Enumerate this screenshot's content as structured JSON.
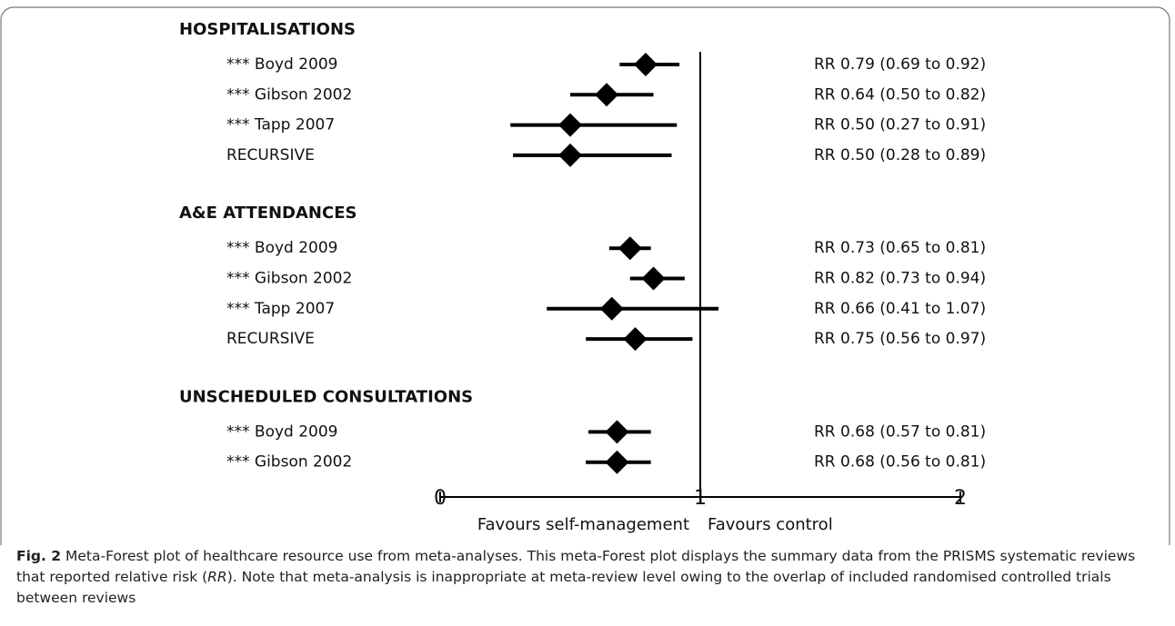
{
  "chart_data": {
    "type": "forest",
    "groups": [
      {
        "name": "HOSPITALISATIONS",
        "categories": [
          "*** Boyd 2009",
          "*** Gibson 2002",
          "*** Tapp 2007",
          "RECURSIVE"
        ],
        "values": [
          0.79,
          0.64,
          0.5,
          0.5
        ],
        "lower": [
          0.69,
          0.5,
          0.27,
          0.28
        ],
        "upper": [
          0.92,
          0.82,
          0.91,
          0.89
        ],
        "value_labels": [
          "RR 0.79 (0.69 to 0.92)",
          "RR 0.64 (0.50 to 0.82)",
          "RR 0.50 (0.27 to 0.91)",
          "RR 0.50 (0.28 to 0.89)"
        ]
      },
      {
        "name": "A&E ATTENDANCES",
        "categories": [
          "*** Boyd 2009",
          "*** Gibson 2002",
          "*** Tapp 2007",
          "RECURSIVE"
        ],
        "values": [
          0.73,
          0.82,
          0.66,
          0.75
        ],
        "lower": [
          0.65,
          0.73,
          0.41,
          0.56
        ],
        "upper": [
          0.81,
          0.94,
          1.07,
          0.97
        ],
        "value_labels": [
          "RR 0.73 (0.65 to 0.81)",
          "RR 0.82 (0.73 to 0.94)",
          "RR 0.66 (0.41 to 1.07)",
          "RR 0.75 (0.56 to 0.97)"
        ]
      },
      {
        "name": "UNSCHEDULED CONSULTATIONS",
        "categories": [
          "*** Boyd 2009",
          "*** Gibson 2002"
        ],
        "values": [
          0.68,
          0.68
        ],
        "lower": [
          0.57,
          0.56
        ],
        "upper": [
          0.81,
          0.81
        ],
        "value_labels": [
          "RR 0.68 (0.57 to 0.81)",
          "RR 0.68 (0.56 to 0.81)"
        ]
      }
    ],
    "xlim": [
      0,
      2
    ],
    "xticks": [
      0,
      1,
      2
    ],
    "reference_line": 1,
    "x_left_label": "Favours self-management",
    "x_right_label": "Favours control",
    "color": "#000000",
    "caption_label": "Fig. 2",
    "caption_text": [
      " Meta-Forest plot of healthcare resource use from meta-analyses. This meta-Forest plot displays the summary data from the PRISMS systematic reviews that reported relative risk (",
      "RR",
      "). Note that meta-analysis is inappropriate at meta-review level owing to the overlap of included randomised controlled trials between reviews"
    ]
  }
}
